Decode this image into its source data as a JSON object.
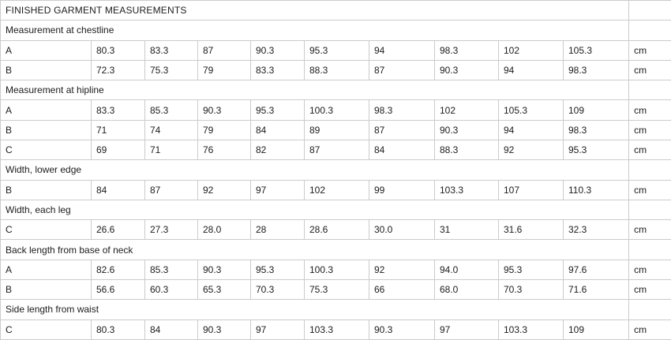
{
  "title": "FINISHED GARMENT MEASUREMENTS",
  "unit_label": "cm",
  "colors": {
    "border": "#cbcbcb",
    "text": "#1c1c1c",
    "background": "#ffffff"
  },
  "table": {
    "sections": [
      {
        "header": "Measurement at chestline",
        "rows": [
          {
            "label": "A",
            "values": [
              "80.3",
              "83.3",
              "87",
              "90.3",
              "95.3",
              "94",
              "98.3",
              "102",
              "105.3"
            ],
            "unit": "cm"
          },
          {
            "label": "B",
            "values": [
              "72.3",
              "75.3",
              "79",
              "83.3",
              "88.3",
              "87",
              "90.3",
              "94",
              "98.3"
            ],
            "unit": "cm"
          }
        ]
      },
      {
        "header": "Measurement at hipline",
        "rows": [
          {
            "label": "A",
            "values": [
              "83.3",
              "85.3",
              "90.3",
              "95.3",
              "100.3",
              "98.3",
              "102",
              "105.3",
              "109"
            ],
            "unit": "cm"
          },
          {
            "label": "B",
            "values": [
              "71",
              "74",
              "79",
              "84",
              "89",
              "87",
              "90.3",
              "94",
              "98.3"
            ],
            "unit": "cm"
          },
          {
            "label": "C",
            "values": [
              "69",
              "71",
              "76",
              "82",
              "87",
              "84",
              "88.3",
              "92",
              "95.3"
            ],
            "unit": "cm"
          }
        ]
      },
      {
        "header": "Width, lower edge",
        "rows": [
          {
            "label": "B",
            "values": [
              "84",
              "87",
              "92",
              "97",
              "102",
              "99",
              "103.3",
              "107",
              "110.3"
            ],
            "unit": "cm"
          }
        ]
      },
      {
        "header": "Width, each leg",
        "rows": [
          {
            "label": "C",
            "values": [
              "26.6",
              "27.3",
              "28.0",
              "28",
              "28.6",
              "30.0",
              "31",
              "31.6",
              "32.3"
            ],
            "unit": "cm"
          }
        ]
      },
      {
        "header": "Back length from base of neck",
        "rows": [
          {
            "label": "A",
            "values": [
              "82.6",
              "85.3",
              "90.3",
              "95.3",
              "100.3",
              "92",
              "94.0",
              "95.3",
              "97.6"
            ],
            "unit": "cm"
          },
          {
            "label": "B",
            "values": [
              "56.6",
              "60.3",
              "65.3",
              "70.3",
              "75.3",
              "66",
              "68.0",
              "70.3",
              "71.6"
            ],
            "unit": "cm"
          }
        ]
      },
      {
        "header": "Side length from waist",
        "rows": [
          {
            "label": "C",
            "values": [
              "80.3",
              "84",
              "90.3",
              "97",
              "103.3",
              "90.3",
              "97",
              "103.3",
              "109"
            ],
            "unit": "cm"
          }
        ]
      }
    ]
  }
}
